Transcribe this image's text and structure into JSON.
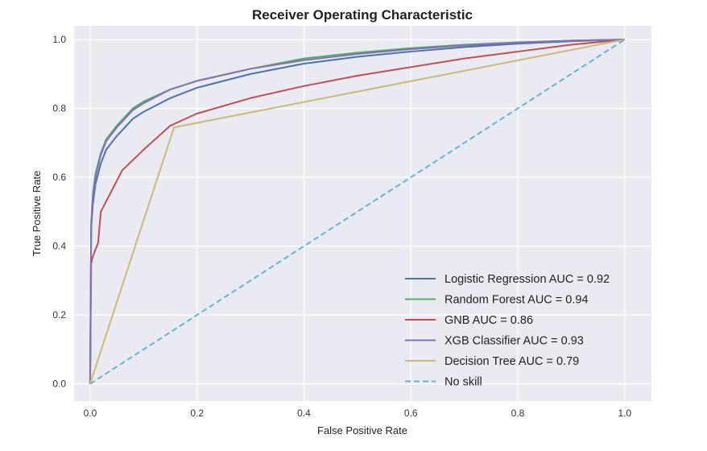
{
  "chart_data": {
    "type": "line",
    "title": "Receiver Operating Characteristic",
    "xlabel": "False Positive Rate",
    "ylabel": "True Positive Rate",
    "xlim": [
      -0.03,
      1.05
    ],
    "ylim": [
      -0.05,
      1.04
    ],
    "xticks": [
      0,
      0.2,
      0.4,
      0.6,
      0.8,
      1
    ],
    "xtick_labels": [
      "0.0",
      "0.2",
      "0.4",
      "0.6",
      "0.8",
      "1.0"
    ],
    "yticks": [
      0,
      0.2,
      0.4,
      0.6,
      0.8,
      1
    ],
    "ytick_labels": [
      "0.0",
      "0.2",
      "0.4",
      "0.6",
      "0.8",
      "1.0"
    ],
    "grid": true,
    "legend_position": "lower-right",
    "background": "#eaeaf2",
    "series": [
      {
        "name": "Logistic Regression AUC = 0.92",
        "color": "#4c72b0",
        "x": [
          0,
          0.002,
          0.005,
          0.01,
          0.02,
          0.03,
          0.05,
          0.08,
          0.1,
          0.15,
          0.2,
          0.3,
          0.4,
          0.5,
          0.6,
          0.7,
          0.8,
          0.9,
          1.0
        ],
        "y": [
          0,
          0.45,
          0.52,
          0.58,
          0.64,
          0.68,
          0.72,
          0.77,
          0.79,
          0.83,
          0.86,
          0.9,
          0.93,
          0.95,
          0.965,
          0.978,
          0.988,
          0.995,
          1.0
        ]
      },
      {
        "name": "Random Forest AUC = 0.94",
        "color": "#55a868",
        "x": [
          0,
          0.002,
          0.005,
          0.01,
          0.02,
          0.03,
          0.05,
          0.08,
          0.1,
          0.15,
          0.2,
          0.3,
          0.4,
          0.5,
          0.6,
          0.7,
          0.8,
          0.9,
          1.0
        ],
        "y": [
          0,
          0.47,
          0.55,
          0.61,
          0.67,
          0.71,
          0.75,
          0.8,
          0.82,
          0.855,
          0.88,
          0.915,
          0.945,
          0.962,
          0.975,
          0.985,
          0.992,
          0.997,
          1.0
        ]
      },
      {
        "name": "GNB AUC = 0.86",
        "color": "#c44e52",
        "x": [
          0,
          0.002,
          0.005,
          0.01,
          0.015,
          0.02,
          0.04,
          0.06,
          0.1,
          0.15,
          0.2,
          0.3,
          0.4,
          0.5,
          0.6,
          0.7,
          0.8,
          0.9,
          1.0
        ],
        "y": [
          0,
          0.35,
          0.37,
          0.39,
          0.41,
          0.5,
          0.56,
          0.62,
          0.68,
          0.75,
          0.785,
          0.83,
          0.865,
          0.895,
          0.92,
          0.945,
          0.965,
          0.985,
          1.0
        ]
      },
      {
        "name": "XGB Classifier AUC = 0.93",
        "color": "#8172b2",
        "x": [
          0,
          0.002,
          0.005,
          0.01,
          0.02,
          0.03,
          0.05,
          0.08,
          0.1,
          0.15,
          0.2,
          0.3,
          0.4,
          0.5,
          0.6,
          0.7,
          0.8,
          0.9,
          1.0
        ],
        "y": [
          0,
          0.46,
          0.54,
          0.6,
          0.665,
          0.705,
          0.745,
          0.795,
          0.815,
          0.855,
          0.88,
          0.915,
          0.94,
          0.958,
          0.972,
          0.983,
          0.991,
          0.997,
          1.0
        ]
      },
      {
        "name": "Decision Tree AUC = 0.79",
        "color": "#ccb974",
        "x": [
          0,
          0.157,
          1.0
        ],
        "y": [
          0,
          0.745,
          1.0
        ]
      },
      {
        "name": "No skill",
        "color": "#64b5cd",
        "dashed": true,
        "x": [
          0,
          1.0
        ],
        "y": [
          0,
          1.0
        ]
      }
    ]
  }
}
